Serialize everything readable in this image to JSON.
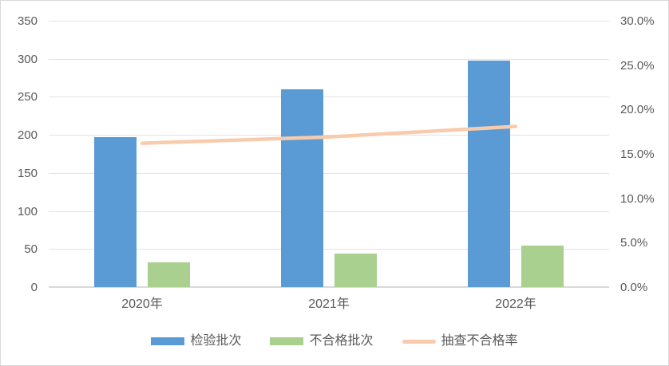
{
  "chart_data": {
    "type": "bar",
    "subtype": "grouped-bars-with-line-overlay",
    "categories": [
      "2020年",
      "2021年",
      "2022年"
    ],
    "series": [
      {
        "name": "检验批次",
        "chart": "bar",
        "axis": "left",
        "color": "#5B9BD5",
        "values": [
          197,
          260,
          298
        ]
      },
      {
        "name": "不合格批次",
        "chart": "bar",
        "axis": "left",
        "color": "#A9D08E",
        "values": [
          32,
          44,
          54
        ]
      },
      {
        "name": "抽查不合格率",
        "chart": "line",
        "axis": "right",
        "color": "#F8CBAD",
        "values": [
          16.2,
          16.9,
          18.1
        ]
      }
    ],
    "title": "",
    "xlabel": "",
    "ylabel": "",
    "left_axis": {
      "min": 0,
      "max": 350,
      "step": 50,
      "ticks": [
        "0",
        "50",
        "100",
        "150",
        "200",
        "250",
        "300",
        "350"
      ]
    },
    "right_axis": {
      "min": 0,
      "max": 30,
      "step": 5,
      "ticks": [
        "0.0%",
        "5.0%",
        "10.0%",
        "15.0%",
        "20.0%",
        "25.0%",
        "30.0%"
      ]
    },
    "grid": true,
    "legend_position": "bottom"
  },
  "colors": {
    "bar_blue": "#5B9BD5",
    "bar_green": "#A9D08E",
    "line_peach": "#F8CBAD",
    "axis_text": "#595959",
    "gridline": "#E3E3E3",
    "axis_line": "#D9D9D9",
    "frame_border": "#D9D9D9",
    "background": "#FFFFFF"
  }
}
